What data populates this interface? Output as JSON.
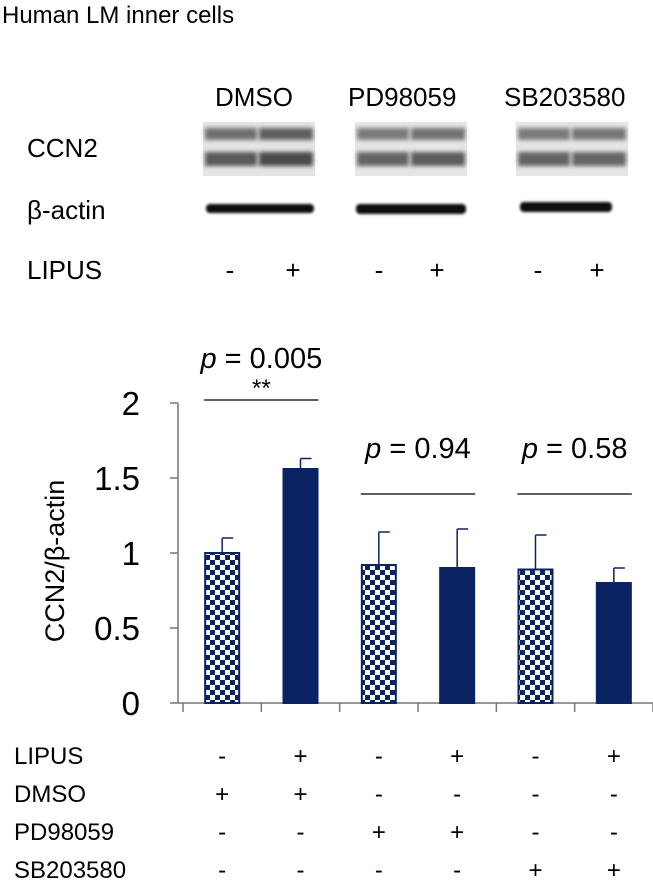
{
  "figure": {
    "title": "Human LM inner cells"
  },
  "blot": {
    "groups": [
      "DMSO",
      "PD98059",
      "SB203580"
    ],
    "rows": [
      "CCN2",
      "β-actin"
    ],
    "lipus_label": "LIPUS",
    "lipus_signs": [
      "-",
      "+",
      "-",
      "+",
      "-",
      "+"
    ]
  },
  "chart_data": {
    "type": "bar",
    "ylabel": "CCN2/β-actin",
    "ylim": [
      0,
      2
    ],
    "yticks": [
      "0",
      "0.5",
      "1",
      "1.5",
      "2"
    ],
    "grid": false,
    "values": [
      1.0,
      1.56,
      0.92,
      0.9,
      0.89,
      0.8
    ],
    "errors": [
      0.1,
      0.07,
      0.22,
      0.26,
      0.23,
      0.1
    ],
    "fills": [
      "checker",
      "solid",
      "checker",
      "solid",
      "checker",
      "solid"
    ],
    "color": "#0a2463",
    "comparisons": [
      {
        "prefix": "p",
        "text": " = 0.005",
        "stars": "**",
        "from": 0,
        "to": 1
      },
      {
        "prefix": "p",
        "text": " = 0.94",
        "stars": "",
        "from": 2,
        "to": 3
      },
      {
        "prefix": "p",
        "text": " = 0.58",
        "stars": "",
        "from": 4,
        "to": 5
      }
    ],
    "condition_table": [
      {
        "label": "LIPUS",
        "signs": [
          "-",
          "+",
          "-",
          "+",
          "-",
          "+"
        ]
      },
      {
        "label": "DMSO",
        "signs": [
          "+",
          "+",
          "-",
          "-",
          "-",
          "-"
        ]
      },
      {
        "label": "PD98059",
        "signs": [
          "-",
          "-",
          "+",
          "+",
          "-",
          "-"
        ]
      },
      {
        "label": "SB203580",
        "signs": [
          "-",
          "-",
          "-",
          "-",
          "+",
          "+"
        ]
      }
    ]
  }
}
